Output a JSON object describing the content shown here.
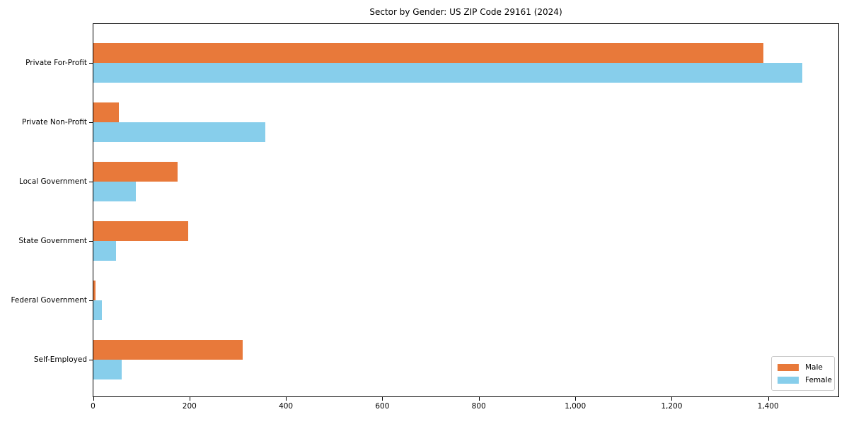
{
  "chart_data": {
    "type": "bar",
    "orientation": "horizontal",
    "title": "Sector by Gender: US ZIP Code 29161 (2024)",
    "categories": [
      "Private For-Profit",
      "Private Non-Profit",
      "Local Government",
      "State Government",
      "Federal Government",
      "Self-Employed"
    ],
    "series": [
      {
        "name": "Male",
        "color": "#e8793a",
        "values": [
          1390,
          53,
          174,
          197,
          4,
          309
        ]
      },
      {
        "name": "Female",
        "color": "#87ceeb",
        "values": [
          1470,
          357,
          88,
          47,
          18,
          59
        ]
      }
    ],
    "xlabel": "",
    "ylabel": "",
    "xlim": [
      0,
      1545
    ],
    "xticks": [
      0,
      200,
      400,
      600,
      800,
      1000,
      1200,
      1400
    ],
    "xtick_labels": [
      "0",
      "200",
      "400",
      "600",
      "800",
      "1,000",
      "1,200",
      "1,400"
    ],
    "legend_position": "lower right",
    "grid": false,
    "axis_color": "#000000",
    "background_color": "#ffffff"
  }
}
